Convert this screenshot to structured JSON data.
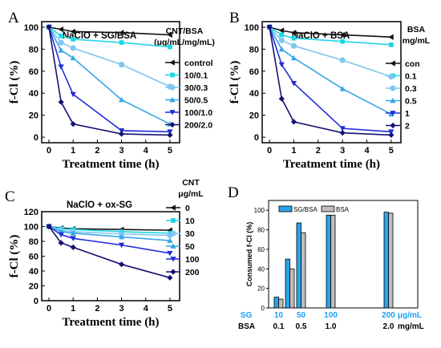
{
  "colors": {
    "control": "#111111",
    "s1": "#1ed6e6",
    "s2": "#7fc6ee",
    "s3": "#35a6e6",
    "s4": "#1f2dd6",
    "s5": "#141270",
    "bar_sg": "#2aa3ea",
    "bar_bsa": "#bdbdbd",
    "blue_text": "#1da1f2"
  },
  "chart_data": [
    {
      "panel": "A",
      "type": "line",
      "title": "NaClO + SG/BSA",
      "xlabel": "Treatment time (h)",
      "ylabel": "f-Cl (%)",
      "legend_title": "CNT/BSA (μg/mL/mg/mL)",
      "legend_title_lines": [
        "CNT/BSA",
        "(μg/mL/mg/mL)"
      ],
      "xlim": [
        -0.3,
        5.4
      ],
      "ylim": [
        -5,
        105
      ],
      "xticks": [
        0,
        1,
        2,
        3,
        4,
        5
      ],
      "yticks": [
        0,
        20,
        40,
        60,
        80,
        100
      ],
      "x": [
        0,
        0.5,
        1,
        3,
        5
      ],
      "series": [
        {
          "name": "control",
          "values": [
            100,
            98,
            96,
            95,
            93
          ],
          "marker": "tri-left"
        },
        {
          "name": "10/0.1",
          "values": [
            100,
            92,
            89,
            86,
            82
          ],
          "marker": "square"
        },
        {
          "name": "30/0.3",
          "values": [
            100,
            86,
            81,
            66,
            46
          ],
          "marker": "circle"
        },
        {
          "name": "50/0.5",
          "values": [
            100,
            79,
            72,
            34,
            12
          ],
          "marker": "tri-up"
        },
        {
          "name": "100/1.0",
          "values": [
            100,
            64,
            39,
            6,
            5
          ],
          "marker": "tri-down"
        },
        {
          "name": "200/2.0",
          "values": [
            100,
            32,
            12,
            3,
            2
          ],
          "marker": "diamond"
        }
      ]
    },
    {
      "panel": "B",
      "type": "line",
      "title": "NaClO + BSA",
      "xlabel": "Treatment time (h)",
      "ylabel": "f-Cl (%)",
      "legend_title": "BSA mg/mL",
      "legend_title_lines": [
        "BSA",
        "mg/mL"
      ],
      "xlim": [
        -0.3,
        5.4
      ],
      "ylim": [
        -5,
        105
      ],
      "xticks": [
        0,
        1,
        2,
        3,
        4,
        5
      ],
      "yticks": [
        0,
        20,
        40,
        60,
        80,
        100
      ],
      "x": [
        0,
        0.5,
        1,
        3,
        5
      ],
      "series": [
        {
          "name": "con",
          "values": [
            100,
            97,
            95,
            93,
            91
          ],
          "marker": "tri-left"
        },
        {
          "name": "0.1",
          "values": [
            100,
            93,
            90,
            87,
            84
          ],
          "marker": "square"
        },
        {
          "name": "0.3",
          "values": [
            100,
            88,
            83,
            70,
            55
          ],
          "marker": "circle"
        },
        {
          "name": "0.5",
          "values": [
            100,
            80,
            72,
            44,
            21
          ],
          "marker": "tri-up"
        },
        {
          "name": "1",
          "values": [
            100,
            66,
            49,
            8,
            5
          ],
          "marker": "tri-down"
        },
        {
          "name": "2",
          "values": [
            100,
            35,
            14,
            4,
            2
          ],
          "marker": "diamond"
        }
      ]
    },
    {
      "panel": "C",
      "type": "line",
      "title": "NaClO + ox-SG",
      "xlabel": "Treatment time (h)",
      "ylabel": "f-Cl (%)",
      "legend_title": "CNT μg/mL",
      "legend_title_lines": [
        "CNT",
        "μg/mL"
      ],
      "xlim": [
        -0.3,
        5.4
      ],
      "ylim": [
        0,
        120
      ],
      "xticks": [
        0,
        1,
        2,
        3,
        4,
        5
      ],
      "yticks": [
        0,
        20,
        40,
        60,
        80,
        100,
        120
      ],
      "x": [
        0,
        0.5,
        1,
        3,
        5
      ],
      "series": [
        {
          "name": "0",
          "values": [
            100,
            98,
            97,
            96,
            95
          ],
          "marker": "tri-left"
        },
        {
          "name": "10",
          "values": [
            100,
            97,
            96,
            93,
            91
          ],
          "marker": "square"
        },
        {
          "name": "30",
          "values": [
            100,
            95,
            93,
            90,
            88
          ],
          "marker": "circle"
        },
        {
          "name": "50",
          "values": [
            100,
            93,
            91,
            86,
            81
          ],
          "marker": "tri-up"
        },
        {
          "name": "100",
          "values": [
            100,
            89,
            84,
            75,
            64
          ],
          "marker": "tri-down"
        },
        {
          "name": "200",
          "values": [
            100,
            78,
            72,
            49,
            31
          ],
          "marker": "diamond"
        }
      ]
    },
    {
      "panel": "D",
      "type": "bar",
      "ylabel": "Consumed f-Cl (%)",
      "ylim": [
        0,
        110
      ],
      "yticks": [
        0,
        20,
        40,
        60,
        80,
        100
      ],
      "legend": [
        "SG/BSA",
        "BSA"
      ],
      "row1_label": "SG",
      "row2_label": "BSA",
      "unit1": "μg/mL",
      "unit2": "mg/mL",
      "categories": [
        {
          "sg": "10",
          "bsa": "0.1",
          "values": [
            11,
            9
          ]
        },
        {
          "sg": "",
          "bsa": "",
          "values": [
            50,
            40
          ]
        },
        {
          "sg": "50",
          "bsa": "0.5",
          "values": [
            87,
            77
          ]
        },
        {
          "sg": "100",
          "bsa": "1.0",
          "values": [
            95,
            95
          ]
        },
        {
          "sg": "200",
          "bsa": "2.0",
          "values": [
            98,
            97
          ]
        }
      ],
      "series": [
        {
          "name": "SG/BSA",
          "values": [
            11,
            50,
            87,
            95,
            98
          ]
        },
        {
          "name": "BSA",
          "values": [
            9,
            40,
            77,
            95,
            97
          ]
        }
      ]
    }
  ],
  "panel_labels": [
    "A",
    "B",
    "C",
    "D"
  ]
}
